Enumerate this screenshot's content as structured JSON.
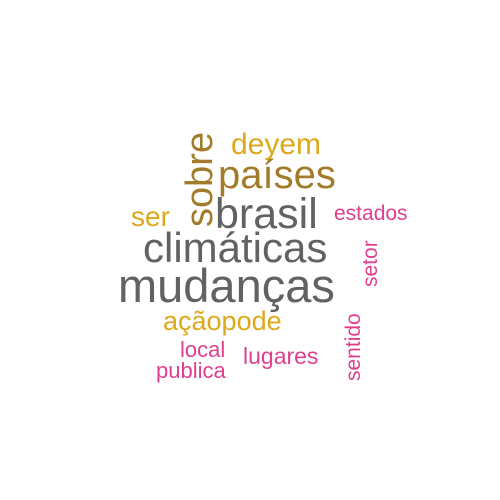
{
  "words": {
    "mudancas": "mudanças",
    "climaticas": "climáticas",
    "brasil": "brasil",
    "paises": "países",
    "sobre": "sobre",
    "deyem": "deyem",
    "ser": "ser",
    "acaopode": "açãopode",
    "estados": "estados",
    "setor": "setor",
    "local": "local",
    "lugares": "lugares",
    "publica": "publica",
    "sentido": "sentido"
  },
  "colors": {
    "grey": "#626262",
    "brown": "#a27c2a",
    "gold": "#dda91a",
    "pink": "#df3f8e"
  }
}
